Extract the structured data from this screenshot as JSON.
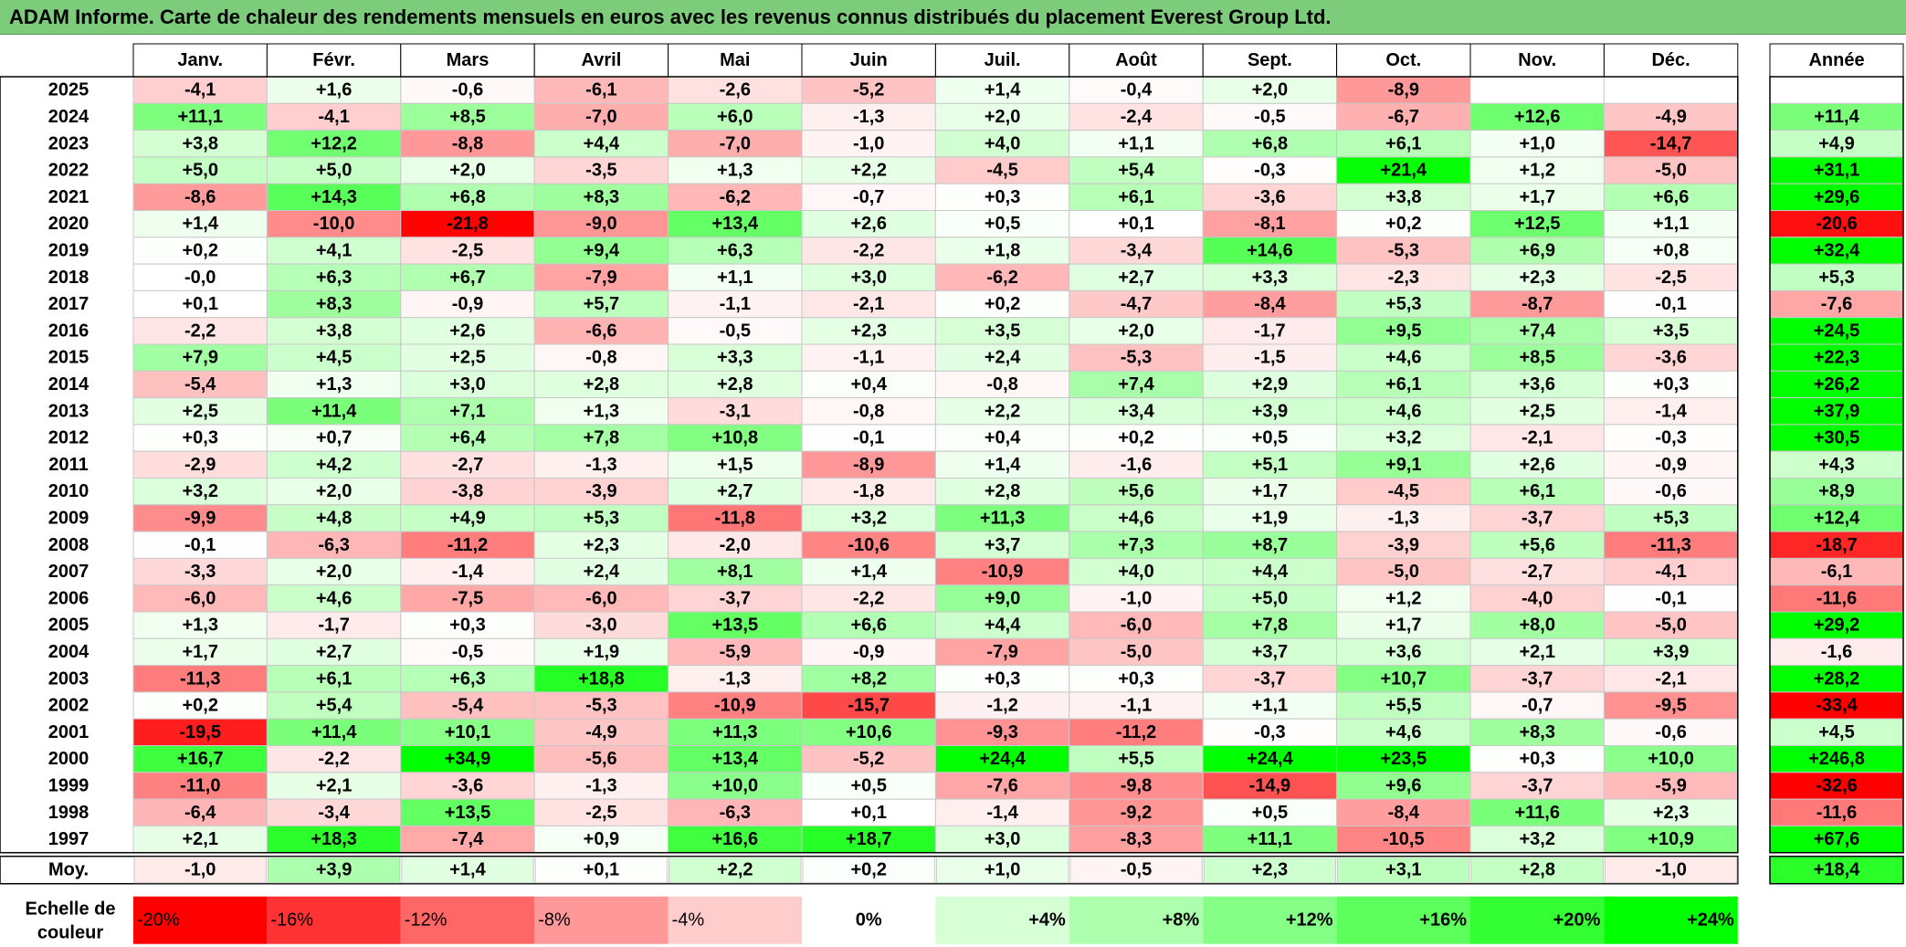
{
  "title": "ADAM Informe. Carte de chaleur des rendements mensuels en euros avec les revenus connus distribués du placement Everest Group Ltd.",
  "chart_data": {
    "type": "heatmap",
    "columns": [
      "Janv.",
      "Févr.",
      "Mars",
      "Avril",
      "Mai",
      "Juin",
      "Juil.",
      "Août",
      "Sept.",
      "Oct.",
      "Nov.",
      "Déc."
    ],
    "annual_header": "Année",
    "rows": [
      {
        "year": "2025",
        "months": [
          "-4,1",
          "+1,6",
          "-0,6",
          "-6,1",
          "-2,6",
          "-5,2",
          "+1,4",
          "-0,4",
          "+2,0",
          "-8,9",
          "",
          ""
        ],
        "annual": ""
      },
      {
        "year": "2024",
        "months": [
          "+11,1",
          "-4,1",
          "+8,5",
          "-7,0",
          "+6,0",
          "-1,3",
          "+2,0",
          "-2,4",
          "-0,5",
          "-6,7",
          "+12,6",
          "-4,9"
        ],
        "annual": "+11,4"
      },
      {
        "year": "2023",
        "months": [
          "+3,8",
          "+12,2",
          "-8,8",
          "+4,4",
          "-7,0",
          "-1,0",
          "+4,0",
          "+1,1",
          "+6,8",
          "+6,1",
          "+1,0",
          "-14,7"
        ],
        "annual": "+4,9"
      },
      {
        "year": "2022",
        "months": [
          "+5,0",
          "+5,0",
          "+2,0",
          "-3,5",
          "+1,3",
          "+2,2",
          "-4,5",
          "+5,4",
          "-0,3",
          "+21,4",
          "+1,2",
          "-5,0"
        ],
        "annual": "+31,1"
      },
      {
        "year": "2021",
        "months": [
          "-8,6",
          "+14,3",
          "+6,8",
          "+8,3",
          "-6,2",
          "-0,7",
          "+0,3",
          "+6,1",
          "-3,6",
          "+3,8",
          "+1,7",
          "+6,6"
        ],
        "annual": "+29,6"
      },
      {
        "year": "2020",
        "months": [
          "+1,4",
          "-10,0",
          "-21,8",
          "-9,0",
          "+13,4",
          "+2,6",
          "+0,5",
          "+0,1",
          "-8,1",
          "+0,2",
          "+12,5",
          "+1,1"
        ],
        "annual": "-20,6"
      },
      {
        "year": "2019",
        "months": [
          "+0,2",
          "+4,1",
          "-2,5",
          "+9,4",
          "+6,3",
          "-2,2",
          "+1,8",
          "-3,4",
          "+14,6",
          "-5,3",
          "+6,9",
          "+0,8"
        ],
        "annual": "+32,4"
      },
      {
        "year": "2018",
        "months": [
          "-0,0",
          "+6,3",
          "+6,7",
          "-7,9",
          "+1,1",
          "+3,0",
          "-6,2",
          "+2,7",
          "+3,3",
          "-2,3",
          "+2,3",
          "-2,5"
        ],
        "annual": "+5,3"
      },
      {
        "year": "2017",
        "months": [
          "+0,1",
          "+8,3",
          "-0,9",
          "+5,7",
          "-1,1",
          "-2,1",
          "+0,2",
          "-4,7",
          "-8,4",
          "+5,3",
          "-8,7",
          "-0,1"
        ],
        "annual": "-7,6"
      },
      {
        "year": "2016",
        "months": [
          "-2,2",
          "+3,8",
          "+2,6",
          "-6,6",
          "-0,5",
          "+2,3",
          "+3,5",
          "+2,0",
          "-1,7",
          "+9,5",
          "+7,4",
          "+3,5"
        ],
        "annual": "+24,5"
      },
      {
        "year": "2015",
        "months": [
          "+7,9",
          "+4,5",
          "+2,5",
          "-0,8",
          "+3,3",
          "-1,1",
          "+2,4",
          "-5,3",
          "-1,5",
          "+4,6",
          "+8,5",
          "-3,6"
        ],
        "annual": "+22,3"
      },
      {
        "year": "2014",
        "months": [
          "-5,4",
          "+1,3",
          "+3,0",
          "+2,8",
          "+2,8",
          "+0,4",
          "-0,8",
          "+7,4",
          "+2,9",
          "+6,1",
          "+3,6",
          "+0,3"
        ],
        "annual": "+26,2"
      },
      {
        "year": "2013",
        "months": [
          "+2,5",
          "+11,4",
          "+7,1",
          "+1,3",
          "-3,1",
          "-0,8",
          "+2,2",
          "+3,4",
          "+3,9",
          "+4,6",
          "+2,5",
          "-1,4"
        ],
        "annual": "+37,9"
      },
      {
        "year": "2012",
        "months": [
          "+0,3",
          "+0,7",
          "+6,4",
          "+7,8",
          "+10,8",
          "-0,1",
          "+0,4",
          "+0,2",
          "+0,5",
          "+3,2",
          "-2,1",
          "-0,3"
        ],
        "annual": "+30,5"
      },
      {
        "year": "2011",
        "months": [
          "-2,9",
          "+4,2",
          "-2,7",
          "-1,3",
          "+1,5",
          "-8,9",
          "+1,4",
          "-1,6",
          "+5,1",
          "+9,1",
          "+2,6",
          "-0,9"
        ],
        "annual": "+4,3"
      },
      {
        "year": "2010",
        "months": [
          "+3,2",
          "+2,0",
          "-3,8",
          "-3,9",
          "+2,7",
          "-1,8",
          "+2,8",
          "+5,6",
          "+1,7",
          "-4,5",
          "+6,1",
          "-0,6"
        ],
        "annual": "+8,9"
      },
      {
        "year": "2009",
        "months": [
          "-9,9",
          "+4,8",
          "+4,9",
          "+5,3",
          "-11,8",
          "+3,2",
          "+11,3",
          "+4,6",
          "+1,9",
          "-1,3",
          "-3,7",
          "+5,3"
        ],
        "annual": "+12,4"
      },
      {
        "year": "2008",
        "months": [
          "-0,1",
          "-6,3",
          "-11,2",
          "+2,3",
          "-2,0",
          "-10,6",
          "+3,7",
          "+7,3",
          "+8,7",
          "-3,9",
          "+5,6",
          "-11,3"
        ],
        "annual": "-18,7"
      },
      {
        "year": "2007",
        "months": [
          "-3,3",
          "+2,0",
          "-1,4",
          "+2,4",
          "+8,1",
          "+1,4",
          "-10,9",
          "+4,0",
          "+4,4",
          "-5,0",
          "-2,7",
          "-4,1"
        ],
        "annual": "-6,1"
      },
      {
        "year": "2006",
        "months": [
          "-6,0",
          "+4,6",
          "-7,5",
          "-6,0",
          "-3,7",
          "-2,2",
          "+9,0",
          "-1,0",
          "+5,0",
          "+1,2",
          "-4,0",
          "-0,1"
        ],
        "annual": "-11,6"
      },
      {
        "year": "2005",
        "months": [
          "+1,3",
          "-1,7",
          "+0,3",
          "-3,0",
          "+13,5",
          "+6,6",
          "+4,4",
          "-6,0",
          "+7,8",
          "+1,7",
          "+8,0",
          "-5,0"
        ],
        "annual": "+29,2"
      },
      {
        "year": "2004",
        "months": [
          "+1,7",
          "+2,7",
          "-0,5",
          "+1,9",
          "-5,9",
          "-0,9",
          "-7,9",
          "-5,0",
          "+3,7",
          "+3,6",
          "+2,1",
          "+3,9"
        ],
        "annual": "-1,6"
      },
      {
        "year": "2003",
        "months": [
          "-11,3",
          "+6,1",
          "+6,3",
          "+18,8",
          "-1,3",
          "+8,2",
          "+0,3",
          "+0,3",
          "-3,7",
          "+10,7",
          "-3,7",
          "-2,1"
        ],
        "annual": "+28,2"
      },
      {
        "year": "2002",
        "months": [
          "+0,2",
          "+5,4",
          "-5,4",
          "-5,3",
          "-10,9",
          "-15,7",
          "-1,2",
          "-1,1",
          "+1,1",
          "+5,5",
          "-0,7",
          "-9,5"
        ],
        "annual": "-33,4"
      },
      {
        "year": "2001",
        "months": [
          "-19,5",
          "+11,4",
          "+10,1",
          "-4,9",
          "+11,3",
          "+10,6",
          "-9,3",
          "-11,2",
          "-0,3",
          "+4,6",
          "+8,3",
          "-0,6"
        ],
        "annual": "+4,5"
      },
      {
        "year": "2000",
        "months": [
          "+16,7",
          "-2,2",
          "+34,9",
          "-5,6",
          "+13,4",
          "-5,2",
          "+24,4",
          "+5,5",
          "+24,4",
          "+23,5",
          "+0,3",
          "+10,0"
        ],
        "annual": "+246,8"
      },
      {
        "year": "1999",
        "months": [
          "-11,0",
          "+2,1",
          "-3,6",
          "-1,3",
          "+10,0",
          "+0,5",
          "-7,6",
          "-9,8",
          "-14,9",
          "+9,6",
          "-3,7",
          "-5,9"
        ],
        "annual": "-32,6"
      },
      {
        "year": "1998",
        "months": [
          "-6,4",
          "-3,4",
          "+13,5",
          "-2,5",
          "-6,3",
          "+0,1",
          "-1,4",
          "-9,2",
          "+0,5",
          "-8,4",
          "+11,6",
          "+2,3"
        ],
        "annual": "-11,6"
      },
      {
        "year": "1997",
        "months": [
          "+2,1",
          "+18,3",
          "-7,4",
          "+0,9",
          "+16,6",
          "+18,7",
          "+3,0",
          "-8,3",
          "+11,1",
          "-10,5",
          "+3,2",
          "+10,9"
        ],
        "annual": "+67,6"
      }
    ],
    "average": {
      "label": "Moy.",
      "months": [
        "-1,0",
        "+3,9",
        "+1,4",
        "+0,1",
        "+2,2",
        "+0,2",
        "+1,0",
        "-0,5",
        "+2,3",
        "+3,1",
        "+2,8",
        "-1,0"
      ],
      "annual": "+18,4"
    },
    "scale": {
      "label_line1": "Echelle de",
      "label_line2": "couleur",
      "stops": [
        {
          "label": "-20%",
          "color": "#ff0000"
        },
        {
          "label": "-16%",
          "color": "#ff3333"
        },
        {
          "label": "-12%",
          "color": "#ff6666"
        },
        {
          "label": "-8%",
          "color": "#ff9999"
        },
        {
          "label": "-4%",
          "color": "#ffcccc"
        },
        {
          "label": "0%",
          "color": "#ffffff"
        },
        {
          "label": "+4%",
          "color": "#d6ffd6"
        },
        {
          "label": "+8%",
          "color": "#adffad"
        },
        {
          "label": "+12%",
          "color": "#85ff85"
        },
        {
          "label": "+16%",
          "color": "#5cff5c"
        },
        {
          "label": "+20%",
          "color": "#33ff33"
        },
        {
          "label": "+24%",
          "color": "#00ff00"
        }
      ]
    },
    "colors": {
      "negative_max": "#ff0000",
      "neutral": "#ffffff",
      "positive_max": "#00ff00",
      "grid": "#c8c8c8",
      "title_bg": "#7ccc7c"
    }
  }
}
